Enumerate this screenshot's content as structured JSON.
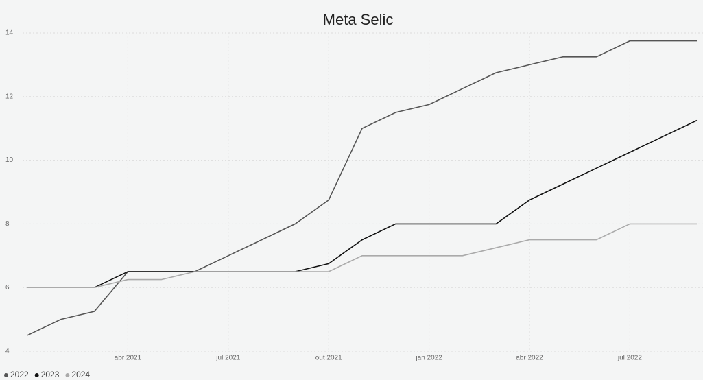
{
  "chart_data": {
    "type": "line",
    "title": "Meta Selic",
    "x": [
      "2021-01",
      "2021-02",
      "2021-03",
      "2021-04",
      "2021-05",
      "2021-06",
      "2021-07",
      "2021-08",
      "2021-09",
      "2021-10",
      "2021-11",
      "2021-12",
      "2022-01",
      "2022-02",
      "2022-03",
      "2022-04",
      "2022-05",
      "2022-06",
      "2022-07",
      "2022-08",
      "2022-09"
    ],
    "series": [
      {
        "name": "2022",
        "color": "#555555",
        "values": [
          4.5,
          5.0,
          5.25,
          6.5,
          6.5,
          6.5,
          7.0,
          7.5,
          8.0,
          8.75,
          11.0,
          11.5,
          11.75,
          12.25,
          12.75,
          13.0,
          13.25,
          13.25,
          13.75,
          13.75,
          13.75
        ]
      },
      {
        "name": "2023",
        "color": "#111111",
        "values": [
          null,
          null,
          6.0,
          6.5,
          6.5,
          6.5,
          6.5,
          6.5,
          6.5,
          6.75,
          7.5,
          8.0,
          8.0,
          8.0,
          8.0,
          8.75,
          9.25,
          9.75,
          10.25,
          10.75,
          11.25
        ]
      },
      {
        "name": "2024",
        "color": "#aaaaaa",
        "values": [
          6.0,
          6.0,
          6.0,
          6.25,
          6.25,
          6.5,
          6.5,
          6.5,
          6.5,
          6.5,
          7.0,
          7.0,
          7.0,
          7.0,
          7.25,
          7.5,
          7.5,
          7.5,
          8.0,
          8.0,
          8.0
        ]
      }
    ],
    "xlim": [
      "2021-01",
      "2022-09"
    ],
    "xticks": [
      {
        "value": "2021-04",
        "label": "abr 2021"
      },
      {
        "value": "2021-07",
        "label": "jul 2021"
      },
      {
        "value": "2021-10",
        "label": "out 2021"
      },
      {
        "value": "2022-01",
        "label": "jan 2022"
      },
      {
        "value": "2022-04",
        "label": "abr 2022"
      },
      {
        "value": "2022-07",
        "label": "jul 2022"
      }
    ],
    "ylim": [
      4,
      14
    ],
    "yticks": [
      4,
      6,
      8,
      10,
      12,
      14
    ],
    "grid": true,
    "legend": "bottom-left"
  }
}
